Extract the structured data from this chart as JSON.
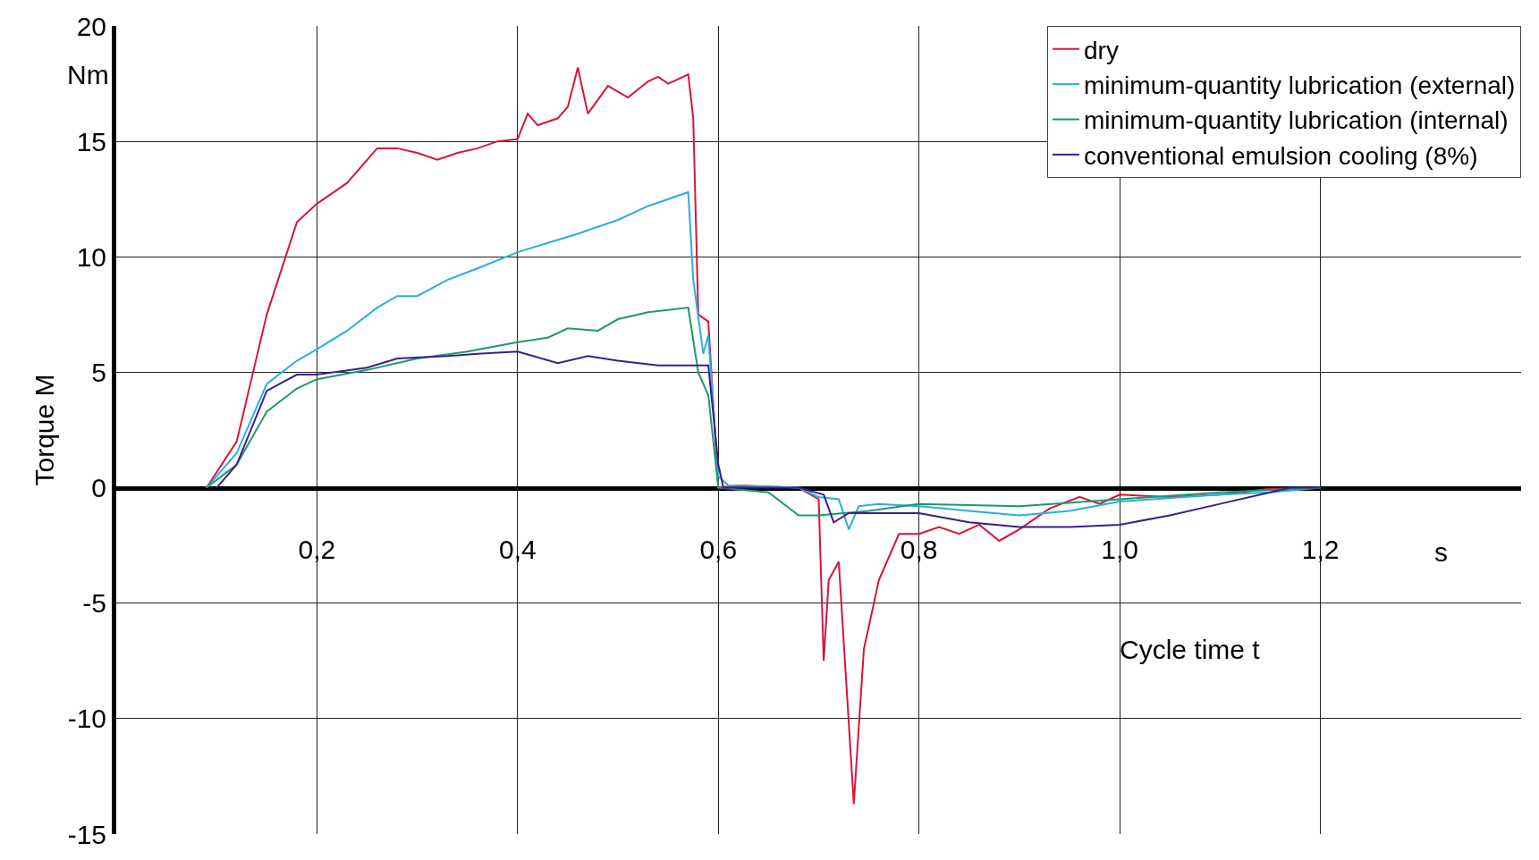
{
  "chart_data": {
    "type": "line",
    "xlabel": "Cycle time t",
    "ylabel": "Torque M",
    "annotations": [
      "Nm",
      "s"
    ],
    "xlim": [
      0,
      1.4
    ],
    "ylim": [
      -15,
      20
    ],
    "xticks": [
      {
        "value": 0.2,
        "label": "0,2"
      },
      {
        "value": 0.4,
        "label": "0,4"
      },
      {
        "value": 0.6,
        "label": "0,6"
      },
      {
        "value": 0.8,
        "label": "0,8"
      },
      {
        "value": 1.0,
        "label": "1,0"
      },
      {
        "value": 1.2,
        "label": "1,2"
      }
    ],
    "yticks": [
      -15,
      -10,
      -5,
      0,
      5,
      10,
      15,
      20
    ],
    "grid": true,
    "legend": "top right",
    "line_style": "solid",
    "marker": "none",
    "series": [
      {
        "name": "dry",
        "color": "#d4163c",
        "x": [
          0.09,
          0.12,
          0.15,
          0.18,
          0.2,
          0.23,
          0.26,
          0.28,
          0.3,
          0.32,
          0.34,
          0.36,
          0.38,
          0.4,
          0.41,
          0.42,
          0.44,
          0.45,
          0.46,
          0.47,
          0.49,
          0.51,
          0.53,
          0.54,
          0.55,
          0.57,
          0.575,
          0.58,
          0.59,
          0.6,
          0.62,
          0.68,
          0.7,
          0.705,
          0.71,
          0.72,
          0.735,
          0.745,
          0.76,
          0.78,
          0.8,
          0.82,
          0.84,
          0.86,
          0.88,
          0.9,
          0.93,
          0.96,
          0.98,
          1.0,
          1.05,
          1.1,
          1.15,
          1.2
        ],
        "values": [
          0,
          2,
          7.5,
          11.5,
          12.3,
          13.2,
          14.7,
          14.7,
          14.5,
          14.2,
          14.5,
          14.7,
          15,
          15.1,
          16.2,
          15.7,
          16,
          16.5,
          18.2,
          16.2,
          17.4,
          16.9,
          17.6,
          17.8,
          17.5,
          17.9,
          16,
          7.5,
          7.2,
          0,
          0.1,
          0,
          -0.5,
          -7.5,
          -4,
          -3.2,
          -13.7,
          -7,
          -4,
          -2,
          -2,
          -1.7,
          -2,
          -1.6,
          -2.3,
          -1.8,
          -0.9,
          -0.4,
          -0.7,
          -0.3,
          -0.4,
          -0.3,
          -0.05,
          0
        ]
      },
      {
        "name": "minimum-quantity lubrication (external)",
        "color": "#2aaee0",
        "x": [
          0.09,
          0.12,
          0.15,
          0.18,
          0.2,
          0.23,
          0.26,
          0.28,
          0.3,
          0.33,
          0.36,
          0.4,
          0.43,
          0.46,
          0.5,
          0.53,
          0.57,
          0.575,
          0.585,
          0.59,
          0.6,
          0.61,
          0.68,
          0.7,
          0.72,
          0.73,
          0.74,
          0.76,
          0.8,
          0.85,
          0.9,
          0.95,
          1.0,
          1.1,
          1.15,
          1.2
        ],
        "values": [
          0,
          1.5,
          4.5,
          5.5,
          6,
          6.8,
          7.8,
          8.3,
          8.3,
          9,
          9.5,
          10.2,
          10.6,
          11,
          11.6,
          12.2,
          12.8,
          9,
          5.8,
          6.6,
          0.5,
          0.1,
          0,
          -0.4,
          -0.5,
          -1.8,
          -0.8,
          -0.7,
          -0.8,
          -1,
          -1.2,
          -1,
          -0.6,
          -0.3,
          -0.2,
          0
        ]
      },
      {
        "name": "minimum-quantity lubrication (internal)",
        "color": "#1a9a6c",
        "x": [
          0.09,
          0.12,
          0.15,
          0.18,
          0.2,
          0.25,
          0.3,
          0.35,
          0.4,
          0.43,
          0.45,
          0.48,
          0.5,
          0.53,
          0.57,
          0.58,
          0.59,
          0.6,
          0.65,
          0.68,
          0.7,
          0.75,
          0.8,
          0.9,
          1.0,
          1.1,
          1.2
        ],
        "values": [
          0,
          1,
          3.3,
          4.3,
          4.7,
          5.1,
          5.6,
          5.9,
          6.3,
          6.5,
          6.9,
          6.8,
          7.3,
          7.6,
          7.8,
          5,
          4,
          0,
          -0.2,
          -1.2,
          -1.2,
          -1,
          -0.7,
          -0.8,
          -0.5,
          -0.2,
          0
        ]
      },
      {
        "name": "conventional emulsion cooling (8%)",
        "color": "#3c1e8c",
        "x": [
          0.1,
          0.12,
          0.15,
          0.18,
          0.2,
          0.25,
          0.28,
          0.33,
          0.36,
          0.4,
          0.44,
          0.47,
          0.5,
          0.54,
          0.57,
          0.59,
          0.6,
          0.605,
          0.68,
          0.705,
          0.715,
          0.73,
          0.8,
          0.85,
          0.9,
          0.95,
          1.0,
          1.05,
          1.1,
          1.15,
          1.17,
          1.2
        ],
        "values": [
          0,
          1,
          4.2,
          4.9,
          4.9,
          5.2,
          5.6,
          5.7,
          5.8,
          5.9,
          5.4,
          5.7,
          5.5,
          5.3,
          5.3,
          5.3,
          1,
          0,
          0,
          -0.3,
          -1.5,
          -1.1,
          -1.1,
          -1.5,
          -1.7,
          -1.7,
          -1.6,
          -1.2,
          -0.7,
          -0.2,
          0,
          0
        ]
      }
    ]
  }
}
